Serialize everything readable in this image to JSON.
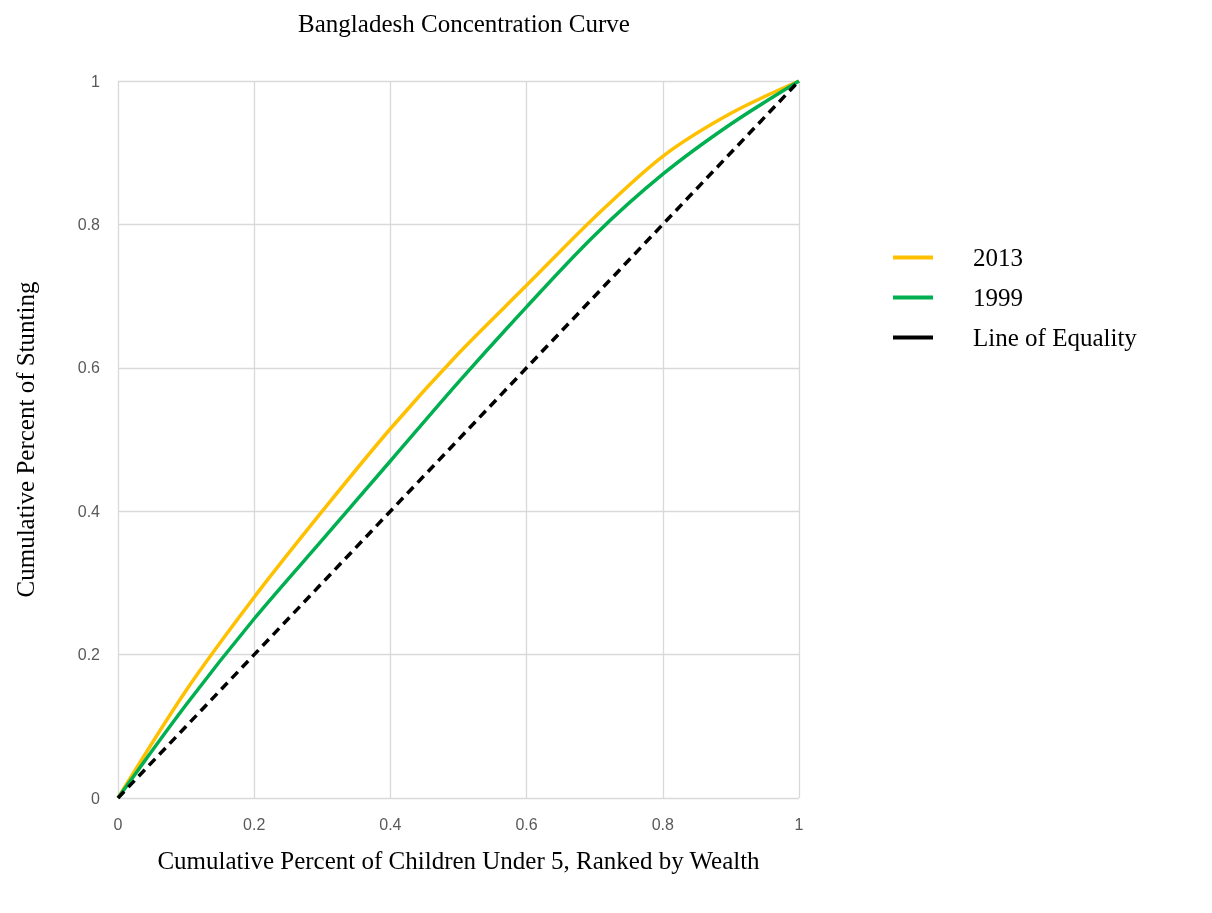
{
  "chart_data": {
    "type": "line",
    "title": "Bangladesh Concentration Curve",
    "xlabel": "Cumulative Percent of Children Under 5, Ranked by Wealth",
    "ylabel": "Cumulative Percent of Stunting",
    "series": [
      {
        "name": "2013",
        "color": "#ffc000",
        "line_style": "solid",
        "x": [
          0,
          0.1,
          0.2,
          0.3,
          0.4,
          0.5,
          0.6,
          0.7,
          0.8,
          0.9,
          1
        ],
        "values": [
          0,
          0.15,
          0.28,
          0.4,
          0.515,
          0.62,
          0.715,
          0.81,
          0.895,
          0.955,
          1
        ]
      },
      {
        "name": "1999",
        "color": "#00b050",
        "line_style": "solid",
        "x": [
          0,
          0.1,
          0.2,
          0.3,
          0.4,
          0.5,
          0.6,
          0.7,
          0.8,
          0.9,
          1
        ],
        "values": [
          0,
          0.13,
          0.25,
          0.36,
          0.47,
          0.58,
          0.685,
          0.785,
          0.87,
          0.94,
          1
        ]
      },
      {
        "name": "Line of Equality",
        "color": "#000000",
        "line_style": "dashed",
        "x": [
          0,
          1
        ],
        "values": [
          0,
          1
        ]
      }
    ],
    "xlim": [
      0,
      1
    ],
    "xticks": [
      0,
      0.2,
      0.4,
      0.6,
      0.8,
      1
    ],
    "ylim": [
      0,
      1
    ],
    "yticks": [
      0,
      0.2,
      0.4,
      0.6,
      0.8,
      1
    ],
    "grid": true,
    "legend": "right",
    "marker": "none"
  }
}
